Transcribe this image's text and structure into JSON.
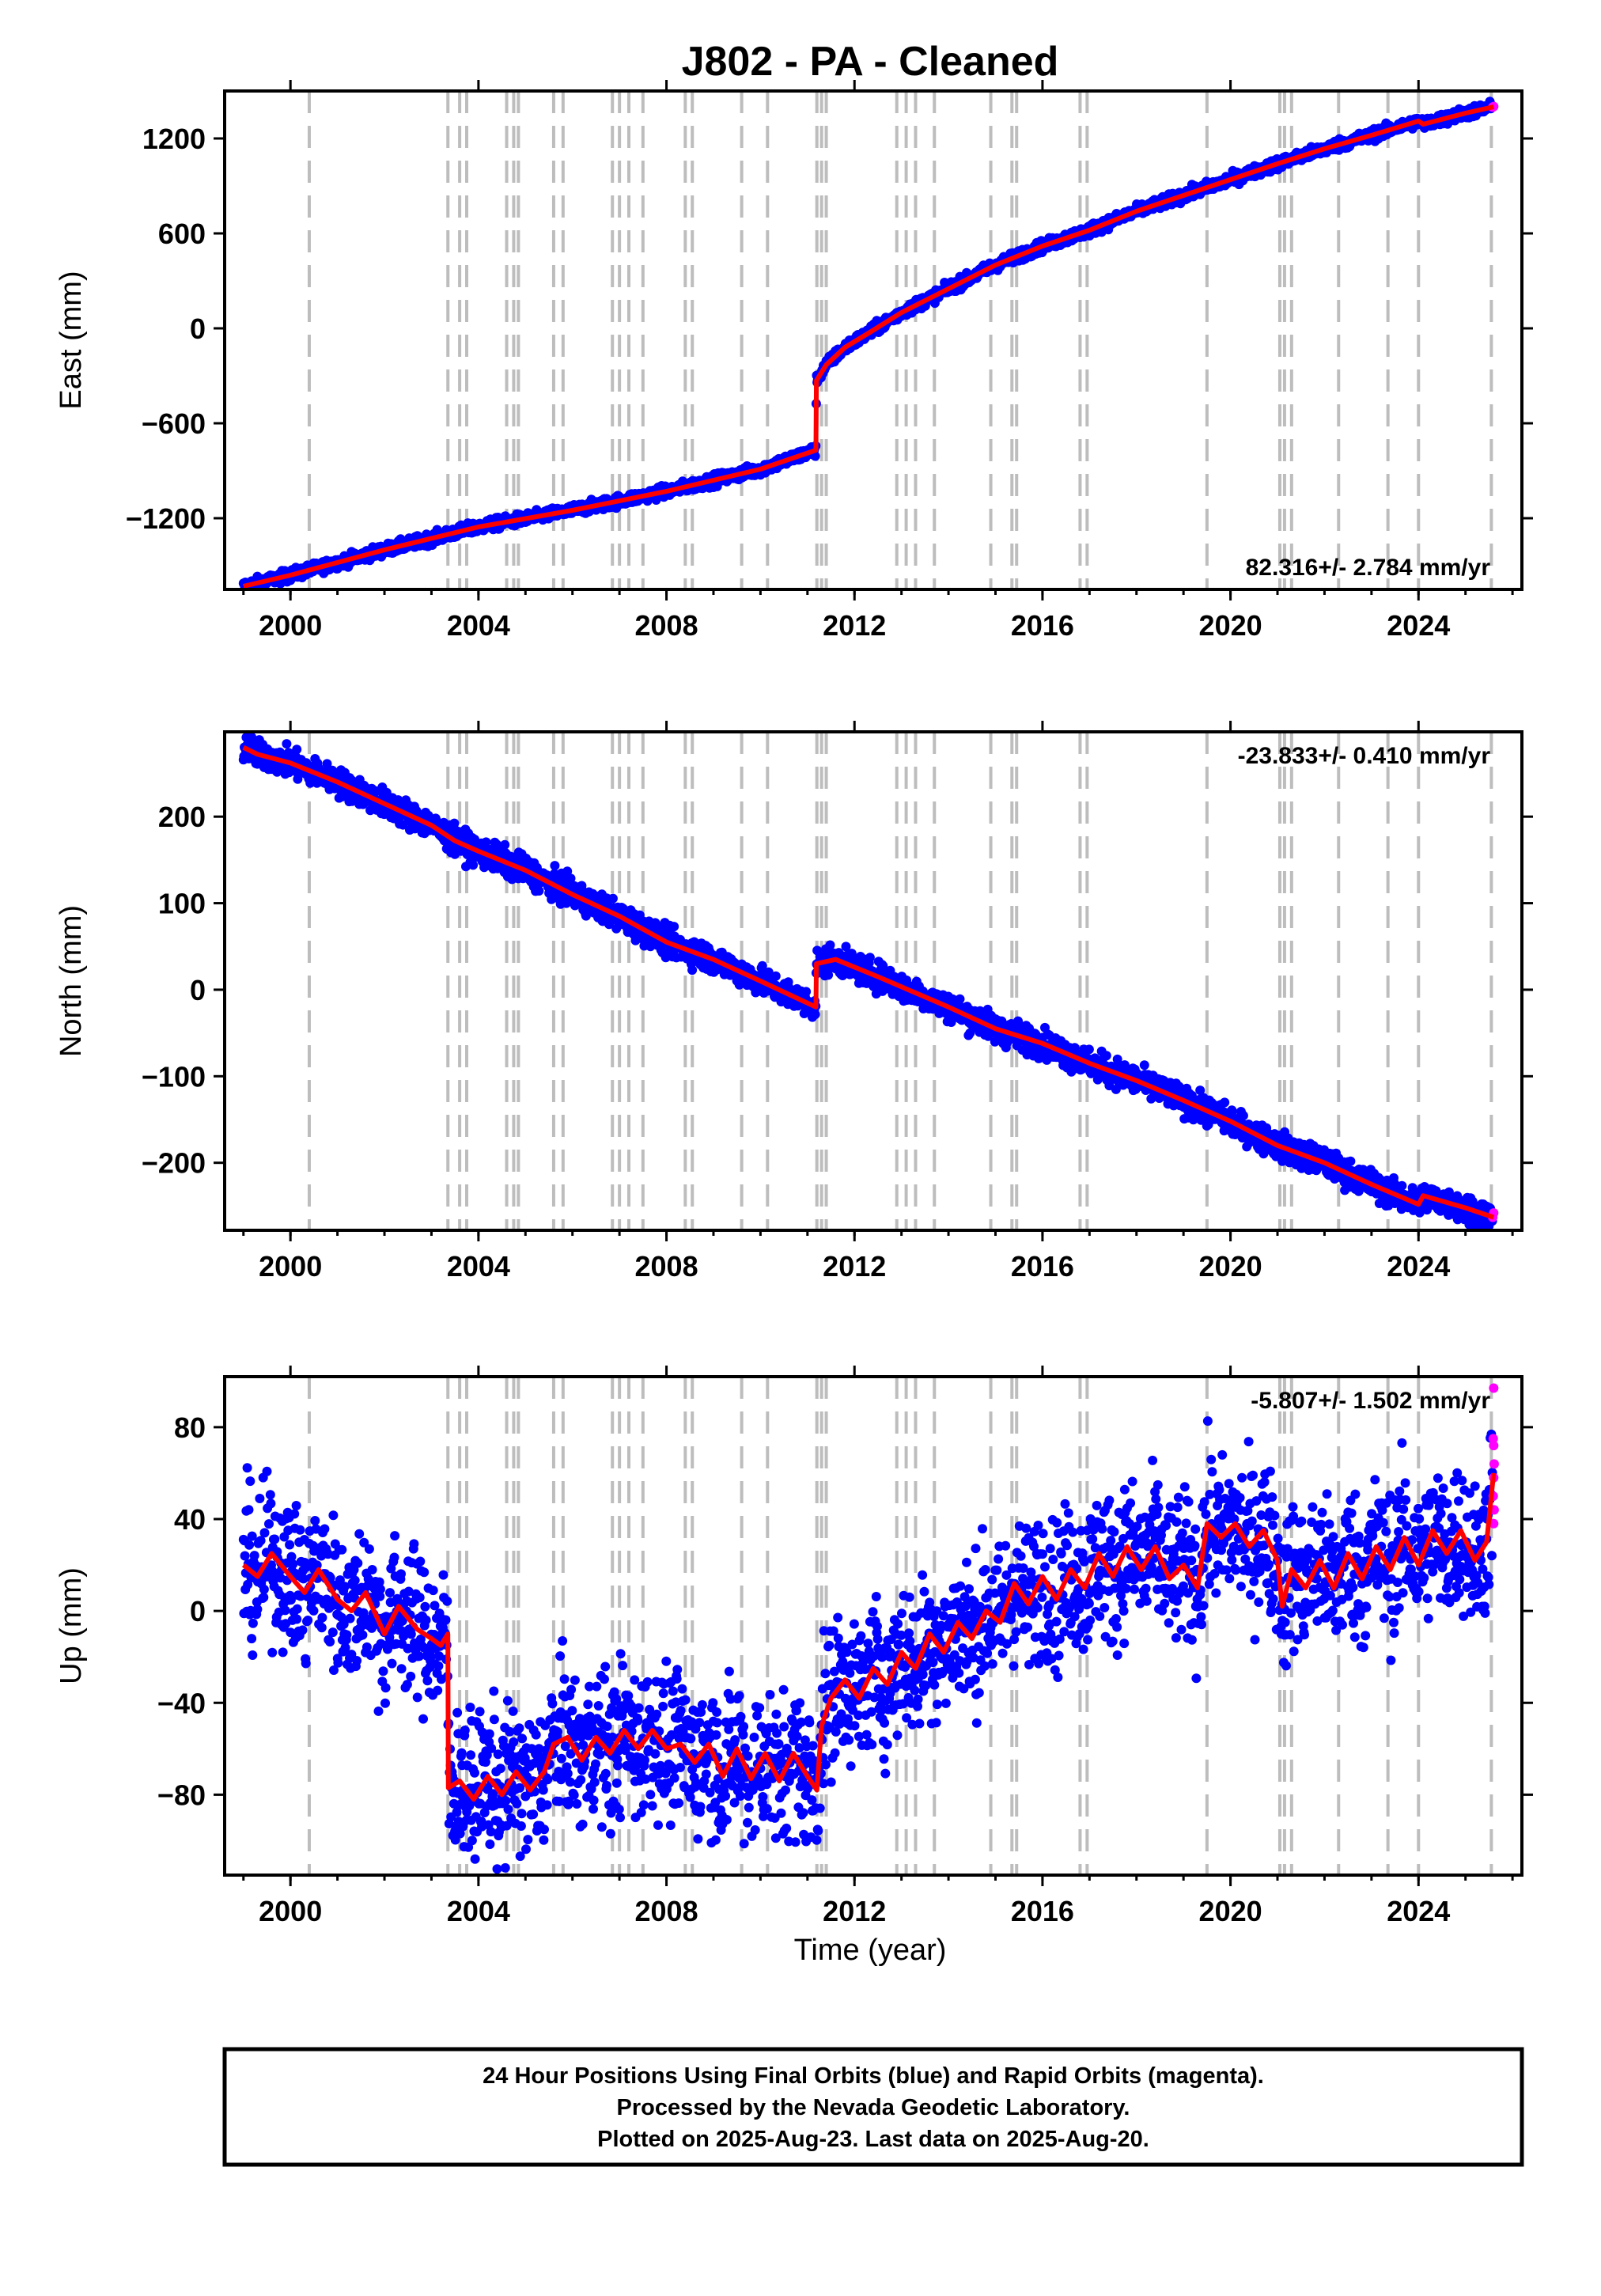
{
  "title": "J802  - PA - Cleaned",
  "xlabel": "Time (year)",
  "footer": [
    "24 Hour Positions Using Final Orbits (blue) and Rapid Orbits (magenta).",
    "Processed by the Nevada Geodetic Laboratory.",
    "Plotted on 2025-Aug-23. Last data on 2025-Aug-20."
  ],
  "colors": {
    "final": "#0000ff",
    "rapid": "#ff00ff",
    "model": "#ff0000",
    "events": "#bdbdbd"
  },
  "chart_data": [
    {
      "type": "scatter",
      "ylabel": "East (mm)",
      "rate": "82.316+/- 2.784 mm/yr",
      "xlim": [
        1998.6,
        2026.2
      ],
      "ylim": [
        -1650,
        1500
      ],
      "xticks": [
        2000,
        2004,
        2008,
        2012,
        2016,
        2020,
        2024
      ],
      "yticks": [
        -1200,
        -600,
        0,
        600,
        1200
      ],
      "ytick_labels": [
        "−1200",
        "−600",
        "0",
        "600",
        "1200"
      ],
      "events": [
        2000.4,
        2003.35,
        2003.6,
        2003.75,
        2004.6,
        2004.75,
        2004.85,
        2005.6,
        2005.8,
        2006.85,
        2007.0,
        2007.2,
        2007.5,
        2008.4,
        2008.55,
        2009.6,
        2010.15,
        2011.2,
        2011.3,
        2011.4,
        2012.9,
        2013.1,
        2013.3,
        2013.7,
        2014.9,
        2015.35,
        2015.45,
        2016.8,
        2016.95,
        2019.5,
        2021.05,
        2021.15,
        2021.3,
        2022.3,
        2023.35,
        2024.0,
        2025.55
      ],
      "model": [
        {
          "x": 1999.0,
          "y": -1630
        },
        {
          "x": 2000.0,
          "y": -1560
        },
        {
          "x": 2002.0,
          "y": -1400
        },
        {
          "x": 2004.0,
          "y": -1255
        },
        {
          "x": 2006.0,
          "y": -1150
        },
        {
          "x": 2008.0,
          "y": -1030
        },
        {
          "x": 2010.0,
          "y": -890
        },
        {
          "x": 2011.18,
          "y": -770
        },
        {
          "x": 2011.19,
          "y": -330
        },
        {
          "x": 2011.4,
          "y": -230
        },
        {
          "x": 2011.8,
          "y": -120
        },
        {
          "x": 2012.3,
          "y": -30
        },
        {
          "x": 2013.0,
          "y": 100
        },
        {
          "x": 2014.0,
          "y": 250
        },
        {
          "x": 2015.0,
          "y": 400
        },
        {
          "x": 2016.0,
          "y": 520
        },
        {
          "x": 2017.0,
          "y": 620
        },
        {
          "x": 2018.0,
          "y": 740
        },
        {
          "x": 2019.0,
          "y": 840
        },
        {
          "x": 2020.0,
          "y": 940
        },
        {
          "x": 2021.0,
          "y": 1040
        },
        {
          "x": 2022.0,
          "y": 1135
        },
        {
          "x": 2023.0,
          "y": 1220
        },
        {
          "x": 2024.0,
          "y": 1310
        },
        {
          "x": 2024.1,
          "y": 1290
        },
        {
          "x": 2025.0,
          "y": 1360
        },
        {
          "x": 2025.6,
          "y": 1400
        }
      ],
      "scatter_spread": 18,
      "rapid_points": [
        {
          "x": 2025.58,
          "y": 1398
        },
        {
          "x": 2025.6,
          "y": 1402
        }
      ]
    },
    {
      "type": "scatter",
      "ylabel": "North (mm)",
      "rate": "-23.833+/- 0.410 mm/yr",
      "xlim": [
        1998.6,
        2026.2
      ],
      "ylim": [
        -278,
        298
      ],
      "xticks": [
        2000,
        2004,
        2008,
        2012,
        2016,
        2020,
        2024
      ],
      "yticks": [
        -200,
        -100,
        0,
        100,
        200
      ],
      "ytick_labels": [
        "−200",
        "−100",
        "0",
        "100",
        "200"
      ],
      "events": [
        2000.4,
        2003.35,
        2003.6,
        2003.75,
        2004.6,
        2004.75,
        2004.85,
        2005.6,
        2005.8,
        2006.85,
        2007.0,
        2007.2,
        2007.5,
        2008.4,
        2008.55,
        2009.6,
        2010.15,
        2011.2,
        2011.3,
        2011.4,
        2012.9,
        2013.1,
        2013.3,
        2013.7,
        2014.9,
        2015.35,
        2015.45,
        2016.8,
        2016.95,
        2019.5,
        2021.05,
        2021.15,
        2021.3,
        2022.3,
        2023.35,
        2024.0,
        2025.55
      ],
      "model": [
        {
          "x": 1999.0,
          "y": 280
        },
        {
          "x": 1999.3,
          "y": 272
        },
        {
          "x": 2000.0,
          "y": 262
        },
        {
          "x": 2001.0,
          "y": 240
        },
        {
          "x": 2002.0,
          "y": 215
        },
        {
          "x": 2003.0,
          "y": 190
        },
        {
          "x": 2003.5,
          "y": 172
        },
        {
          "x": 2004.0,
          "y": 160
        },
        {
          "x": 2005.0,
          "y": 138
        },
        {
          "x": 2006.0,
          "y": 110
        },
        {
          "x": 2007.0,
          "y": 85
        },
        {
          "x": 2008.0,
          "y": 55
        },
        {
          "x": 2009.0,
          "y": 35
        },
        {
          "x": 2010.0,
          "y": 10
        },
        {
          "x": 2011.18,
          "y": -20
        },
        {
          "x": 2011.19,
          "y": 30
        },
        {
          "x": 2011.6,
          "y": 35
        },
        {
          "x": 2012.5,
          "y": 15
        },
        {
          "x": 2014.0,
          "y": -20
        },
        {
          "x": 2015.0,
          "y": -45
        },
        {
          "x": 2016.0,
          "y": -62
        },
        {
          "x": 2017.0,
          "y": -85
        },
        {
          "x": 2018.0,
          "y": -105
        },
        {
          "x": 2019.0,
          "y": -128
        },
        {
          "x": 2020.0,
          "y": -152
        },
        {
          "x": 2021.0,
          "y": -180
        },
        {
          "x": 2022.0,
          "y": -200
        },
        {
          "x": 2023.0,
          "y": -225
        },
        {
          "x": 2024.0,
          "y": -248
        },
        {
          "x": 2024.1,
          "y": -238
        },
        {
          "x": 2025.0,
          "y": -252
        },
        {
          "x": 2025.6,
          "y": -263
        }
      ],
      "scatter_spread": 8,
      "rapid_points": [
        {
          "x": 2025.58,
          "y": -263
        },
        {
          "x": 2025.6,
          "y": -258
        }
      ]
    },
    {
      "type": "scatter",
      "ylabel": "Up (mm)",
      "rate": "-5.807+/- 1.502 mm/yr",
      "xlim": [
        1998.6,
        2026.2
      ],
      "ylim": [
        -115,
        102
      ],
      "xticks": [
        2000,
        2004,
        2008,
        2012,
        2016,
        2020,
        2024
      ],
      "yticks": [
        -80,
        -40,
        0,
        40,
        80
      ],
      "ytick_labels": [
        "−80",
        "−40",
        "0",
        "40",
        "80"
      ],
      "events": [
        2000.4,
        2003.35,
        2003.6,
        2003.75,
        2004.6,
        2004.75,
        2004.85,
        2005.6,
        2005.8,
        2006.85,
        2007.0,
        2007.2,
        2007.5,
        2008.4,
        2008.55,
        2009.6,
        2010.15,
        2011.2,
        2011.3,
        2011.4,
        2012.9,
        2013.1,
        2013.3,
        2013.7,
        2014.9,
        2015.35,
        2015.45,
        2016.8,
        2016.95,
        2019.5,
        2021.05,
        2021.15,
        2021.3,
        2022.3,
        2023.35,
        2024.0,
        2025.55
      ],
      "model": [
        {
          "x": 1999.0,
          "y": 20
        },
        {
          "x": 1999.3,
          "y": 15
        },
        {
          "x": 1999.6,
          "y": 25
        },
        {
          "x": 2000.0,
          "y": 15
        },
        {
          "x": 2000.3,
          "y": 8
        },
        {
          "x": 2000.6,
          "y": 18
        },
        {
          "x": 2001.0,
          "y": 5
        },
        {
          "x": 2001.3,
          "y": 0
        },
        {
          "x": 2001.6,
          "y": 8
        },
        {
          "x": 2002.0,
          "y": -10
        },
        {
          "x": 2002.3,
          "y": 2
        },
        {
          "x": 2002.7,
          "y": -8
        },
        {
          "x": 2003.0,
          "y": -12
        },
        {
          "x": 2003.2,
          "y": -15
        },
        {
          "x": 2003.35,
          "y": -10
        },
        {
          "x": 2003.36,
          "y": -77
        },
        {
          "x": 2003.6,
          "y": -74
        },
        {
          "x": 2003.9,
          "y": -82
        },
        {
          "x": 2004.2,
          "y": -72
        },
        {
          "x": 2004.5,
          "y": -80
        },
        {
          "x": 2004.8,
          "y": -70
        },
        {
          "x": 2005.1,
          "y": -78
        },
        {
          "x": 2005.4,
          "y": -70
        },
        {
          "x": 2005.6,
          "y": -58
        },
        {
          "x": 2005.9,
          "y": -55
        },
        {
          "x": 2006.2,
          "y": -65
        },
        {
          "x": 2006.5,
          "y": -55
        },
        {
          "x": 2006.8,
          "y": -62
        },
        {
          "x": 2007.1,
          "y": -52
        },
        {
          "x": 2007.4,
          "y": -60
        },
        {
          "x": 2007.7,
          "y": -52
        },
        {
          "x": 2008.0,
          "y": -60
        },
        {
          "x": 2008.3,
          "y": -58
        },
        {
          "x": 2008.6,
          "y": -66
        },
        {
          "x": 2008.9,
          "y": -58
        },
        {
          "x": 2009.2,
          "y": -72
        },
        {
          "x": 2009.5,
          "y": -60
        },
        {
          "x": 2009.8,
          "y": -73
        },
        {
          "x": 2010.1,
          "y": -62
        },
        {
          "x": 2010.4,
          "y": -74
        },
        {
          "x": 2010.7,
          "y": -62
        },
        {
          "x": 2011.0,
          "y": -72
        },
        {
          "x": 2011.2,
          "y": -78
        },
        {
          "x": 2011.3,
          "y": -50
        },
        {
          "x": 2011.5,
          "y": -38
        },
        {
          "x": 2011.8,
          "y": -30
        },
        {
          "x": 2012.1,
          "y": -38
        },
        {
          "x": 2012.4,
          "y": -25
        },
        {
          "x": 2012.7,
          "y": -32
        },
        {
          "x": 2013.0,
          "y": -18
        },
        {
          "x": 2013.3,
          "y": -25
        },
        {
          "x": 2013.6,
          "y": -10
        },
        {
          "x": 2013.9,
          "y": -18
        },
        {
          "x": 2014.2,
          "y": -5
        },
        {
          "x": 2014.5,
          "y": -12
        },
        {
          "x": 2014.8,
          "y": 0
        },
        {
          "x": 2015.1,
          "y": -5
        },
        {
          "x": 2015.4,
          "y": 12
        },
        {
          "x": 2015.7,
          "y": 3
        },
        {
          "x": 2016.0,
          "y": 15
        },
        {
          "x": 2016.3,
          "y": 5
        },
        {
          "x": 2016.6,
          "y": 18
        },
        {
          "x": 2016.9,
          "y": 10
        },
        {
          "x": 2017.2,
          "y": 25
        },
        {
          "x": 2017.5,
          "y": 15
        },
        {
          "x": 2017.8,
          "y": 28
        },
        {
          "x": 2018.1,
          "y": 18
        },
        {
          "x": 2018.4,
          "y": 28
        },
        {
          "x": 2018.7,
          "y": 14
        },
        {
          "x": 2019.0,
          "y": 20
        },
        {
          "x": 2019.3,
          "y": 10
        },
        {
          "x": 2019.5,
          "y": 38
        },
        {
          "x": 2019.8,
          "y": 32
        },
        {
          "x": 2020.1,
          "y": 38
        },
        {
          "x": 2020.4,
          "y": 28
        },
        {
          "x": 2020.7,
          "y": 35
        },
        {
          "x": 2021.0,
          "y": 22
        },
        {
          "x": 2021.1,
          "y": 2
        },
        {
          "x": 2021.3,
          "y": 18
        },
        {
          "x": 2021.6,
          "y": 10
        },
        {
          "x": 2021.9,
          "y": 22
        },
        {
          "x": 2022.2,
          "y": 10
        },
        {
          "x": 2022.5,
          "y": 25
        },
        {
          "x": 2022.8,
          "y": 14
        },
        {
          "x": 2023.1,
          "y": 28
        },
        {
          "x": 2023.4,
          "y": 18
        },
        {
          "x": 2023.7,
          "y": 32
        },
        {
          "x": 2024.0,
          "y": 20
        },
        {
          "x": 2024.3,
          "y": 35
        },
        {
          "x": 2024.6,
          "y": 25
        },
        {
          "x": 2024.9,
          "y": 35
        },
        {
          "x": 2025.2,
          "y": 22
        },
        {
          "x": 2025.45,
          "y": 30
        },
        {
          "x": 2025.6,
          "y": 60
        }
      ],
      "scatter_spread": 16,
      "rapid_points": [
        {
          "x": 2025.6,
          "y": 97
        },
        {
          "x": 2025.59,
          "y": 75
        },
        {
          "x": 2025.6,
          "y": 72
        },
        {
          "x": 2025.61,
          "y": 64
        },
        {
          "x": 2025.6,
          "y": 58
        },
        {
          "x": 2025.59,
          "y": 50
        },
        {
          "x": 2025.61,
          "y": 44
        },
        {
          "x": 2025.6,
          "y": 38
        }
      ]
    }
  ]
}
